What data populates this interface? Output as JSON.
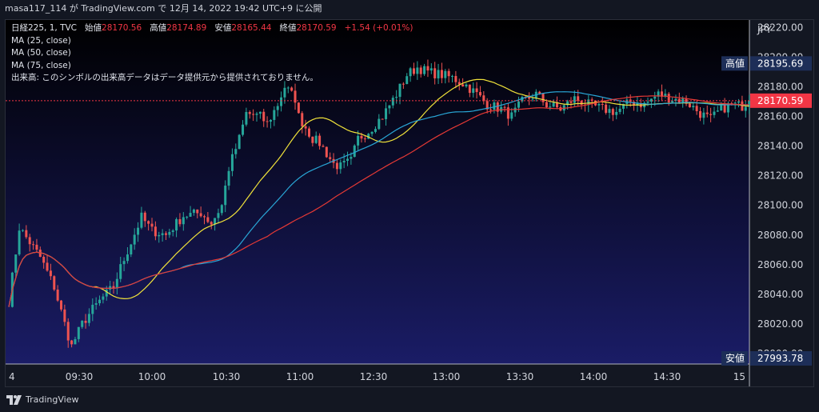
{
  "header": {
    "attribution": "masa117_114 が TradingView.com で 12月 14, 2022 19:42 UTC+9 に公開"
  },
  "legend": {
    "symbol": "日経225, 1, TVC",
    "open_label": "始値",
    "open_value": "28170.56",
    "high_label": "高値",
    "high_value": "28174.89",
    "low_label": "安値",
    "low_value": "28165.44",
    "close_label": "終値",
    "close_value": "28170.59",
    "change": "+1.54 (+0.01%)",
    "ma25": "MA (25, close)",
    "ma50": "MA (50, close)",
    "ma75": "MA (75, close)",
    "volume_note": "出来高: このシンボルの出来高データはデータ提供元から提供されておりません。"
  },
  "footer": {
    "brand": "TradingView"
  },
  "colors": {
    "up": "#26a69a",
    "down": "#ef5350",
    "ma25": "#f0e23a",
    "ma50": "#29a6d6",
    "ma75": "#e53935",
    "bg_top": "#000000",
    "bg_bottom": "#1a1c66",
    "last_price": "#f23645",
    "high_label_bg": "#1d2e58",
    "low_label_bg": "#1d2e58"
  },
  "chart_data": {
    "type": "candlestick",
    "currency": "JPY",
    "y_ticks": [
      "28000.00",
      "28020.00",
      "28040.00",
      "28060.00",
      "28080.00",
      "28100.00",
      "28120.00",
      "28140.00",
      "28160.00",
      "28180.00",
      "28200.00",
      "28220.00"
    ],
    "ylim": [
      27993,
      28225
    ],
    "x_ticks": [
      "4",
      "09:30",
      "10:00",
      "10:30",
      "11:00",
      "12:30",
      "13:00",
      "13:30",
      "14:00",
      "14:30",
      "15"
    ],
    "high_marker": {
      "label": "高値",
      "value": "28195.69"
    },
    "low_marker": {
      "label": "安値",
      "value": "27993.78"
    },
    "last_price": "28170.59",
    "anchors": [
      [
        0,
        28035
      ],
      [
        3,
        28085
      ],
      [
        9,
        28065
      ],
      [
        13,
        28045
      ],
      [
        16,
        28020
      ],
      [
        17,
        28012
      ],
      [
        18,
        28005
      ],
      [
        21,
        28020
      ],
      [
        24,
        28030
      ],
      [
        27,
        28038
      ],
      [
        30,
        28045
      ],
      [
        32,
        28058
      ],
      [
        35,
        28075
      ],
      [
        38,
        28092
      ],
      [
        41,
        28083
      ],
      [
        45,
        28080
      ],
      [
        50,
        28093
      ],
      [
        55,
        28095
      ],
      [
        58,
        28088
      ],
      [
        61,
        28100
      ],
      [
        63,
        28125
      ],
      [
        66,
        28145
      ],
      [
        68,
        28162
      ],
      [
        72,
        28160
      ],
      [
        74,
        28155
      ],
      [
        77,
        28168
      ],
      [
        79,
        28180
      ],
      [
        82,
        28172
      ],
      [
        83,
        28160
      ],
      [
        87,
        28145
      ],
      [
        89,
        28142
      ],
      [
        91,
        28135
      ],
      [
        93,
        28128
      ],
      [
        95,
        28126
      ],
      [
        98,
        28130
      ],
      [
        100,
        28145
      ],
      [
        103,
        28150
      ],
      [
        107,
        28160
      ],
      [
        111,
        28175
      ],
      [
        114,
        28188
      ],
      [
        117,
        28193
      ],
      [
        120,
        28190
      ],
      [
        124,
        28188
      ],
      [
        127,
        28186
      ],
      [
        131,
        28181
      ],
      [
        134,
        28175
      ],
      [
        137,
        28168
      ],
      [
        141,
        28165
      ],
      [
        144,
        28160
      ],
      [
        147,
        28170
      ],
      [
        151,
        28175
      ],
      [
        154,
        28168
      ],
      [
        158,
        28165
      ],
      [
        162,
        28172
      ],
      [
        166,
        28168
      ],
      [
        170,
        28165
      ],
      [
        174,
        28163
      ],
      [
        178,
        28170
      ],
      [
        182,
        28168
      ],
      [
        186,
        28175
      ],
      [
        190,
        28172
      ],
      [
        194,
        28170
      ],
      [
        198,
        28162
      ],
      [
        201,
        28158
      ],
      [
        204,
        28165
      ],
      [
        207,
        28168
      ],
      [
        210,
        28167
      ],
      [
        212,
        28171
      ]
    ]
  }
}
